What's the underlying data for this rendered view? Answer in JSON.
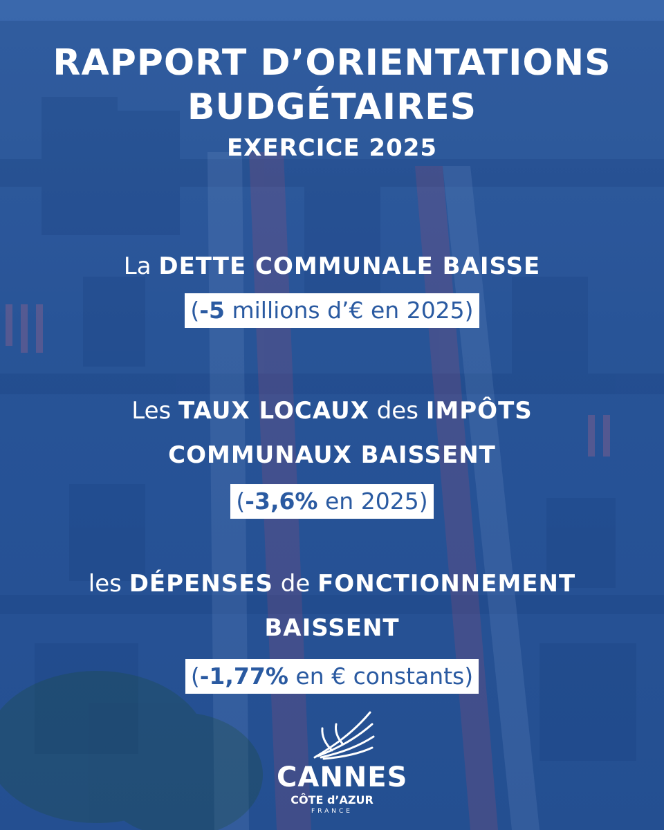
{
  "title": {
    "line1": "RAPPORT D’ORIENTATIONS",
    "line2": "BUDGÉTAIRES",
    "line3": "EXERCICE 2025"
  },
  "items": [
    {
      "intro": "La ",
      "bold": "DETTE COMMUNALE BAISSE",
      "detail_prefix": "(",
      "detail_bold": "-5",
      "detail_rest": " millions d’€ en 2025)"
    },
    {
      "line1_a": "Les ",
      "line1_b": "TAUX LOCAUX",
      "line1_c": " des ",
      "line1_d": "IMPÔTS",
      "line2": "COMMUNAUX BAISSENT",
      "detail_prefix": "(",
      "detail_bold": "-3,6%",
      "detail_rest": " en 2025)"
    },
    {
      "line1_a": "les ",
      "line1_b": "DÉPENSES",
      "line1_c": " de ",
      "line1_d": "FONCTIONNEMENT",
      "line2": "BAISSENT",
      "detail_prefix": "(",
      "detail_bold": "-1,77%",
      "detail_rest": " en € constants)"
    }
  ],
  "logo": {
    "name": "CANNES",
    "subtitle": "CÔTE d’AZUR",
    "country": "FRANCE"
  },
  "colors": {
    "background": "#2f5da3",
    "text": "#ffffff",
    "box_text": "#2a5aa1"
  }
}
